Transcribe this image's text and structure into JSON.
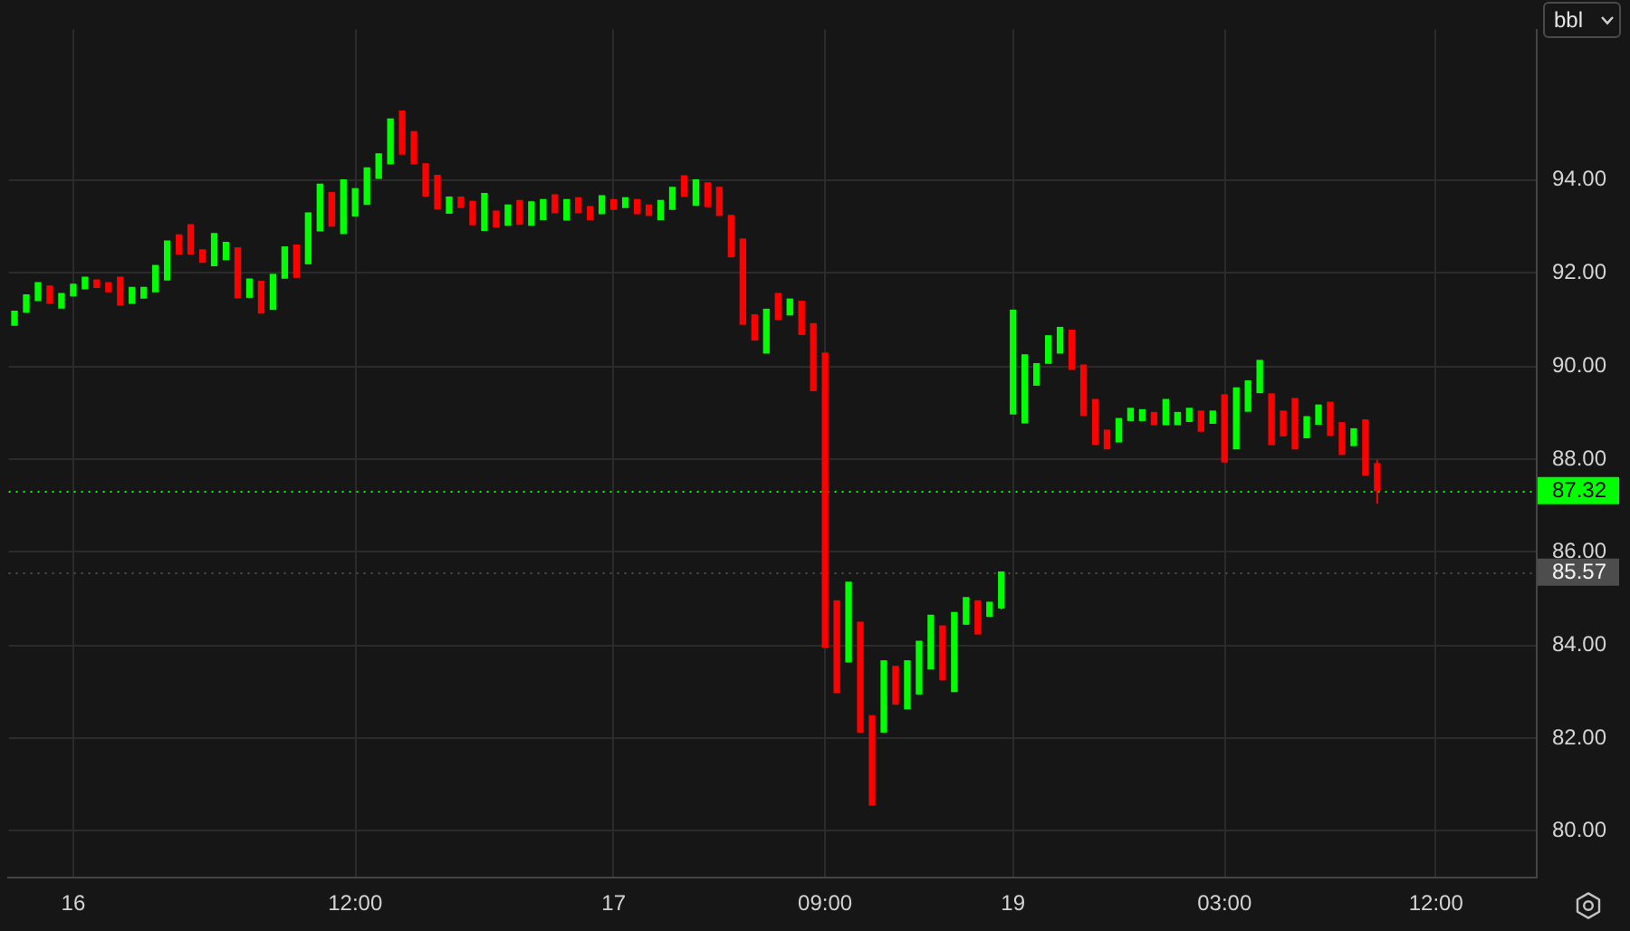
{
  "chart_data": {
    "type": "candlestick",
    "ylabel": "bbl",
    "categories": [
      null,
      null,
      null,
      null,
      null,
      "16",
      null,
      null,
      null,
      null,
      null,
      null,
      null,
      null,
      null,
      null,
      null,
      null,
      null,
      null,
      null,
      null,
      null,
      null,
      null,
      null,
      null,
      null,
      null,
      "12:00",
      null,
      null,
      null,
      null,
      null,
      null,
      null,
      null,
      null,
      null,
      null,
      null,
      null,
      null,
      null,
      null,
      null,
      null,
      null,
      null,
      null,
      "17",
      null,
      null,
      null,
      null,
      null,
      null,
      null,
      null,
      null,
      null,
      null,
      null,
      null,
      null,
      null,
      null,
      null,
      "09:00",
      null,
      null,
      null,
      null,
      null,
      null,
      null,
      null,
      null,
      null,
      null,
      null,
      null,
      null,
      null,
      "19",
      null,
      null,
      null,
      null,
      null,
      null,
      null,
      null,
      null,
      null,
      null,
      null,
      null,
      null,
      null,
      null,
      null,
      "03:00",
      null,
      null,
      null,
      null,
      null,
      null,
      null,
      null,
      null,
      null,
      null,
      null,
      null,
      null,
      null,
      null,
      null,
      "12:00",
      null,
      null,
      null,
      null,
      null,
      null,
      null,
      null
    ],
    "ohlc": [
      [
        90.88,
        91.18,
        90.88,
        91.18
      ],
      [
        91.16,
        91.53,
        91.16,
        91.53
      ],
      [
        91.41,
        91.79,
        91.41,
        91.79
      ],
      [
        91.72,
        91.72,
        91.35,
        91.35
      ],
      [
        91.25,
        91.56,
        91.25,
        91.56
      ],
      [
        91.51,
        91.76,
        91.51,
        91.76
      ],
      [
        91.66,
        91.91,
        91.66,
        91.91
      ],
      [
        91.85,
        91.85,
        91.69,
        91.69
      ],
      [
        91.79,
        91.79,
        91.6,
        91.6
      ],
      [
        91.91,
        91.91,
        91.31,
        91.31
      ],
      [
        91.35,
        91.69,
        91.35,
        91.69
      ],
      [
        91.46,
        91.69,
        91.46,
        91.69
      ],
      [
        91.6,
        92.16,
        91.6,
        92.16
      ],
      [
        91.85,
        92.69,
        91.85,
        92.69
      ],
      [
        92.82,
        92.82,
        92.41,
        92.41
      ],
      [
        93.04,
        93.04,
        92.41,
        92.41
      ],
      [
        92.5,
        92.5,
        92.23,
        92.23
      ],
      [
        92.16,
        92.85,
        92.16,
        92.85
      ],
      [
        92.29,
        92.66,
        92.29,
        92.66
      ],
      [
        92.54,
        92.54,
        91.47,
        91.47
      ],
      [
        91.48,
        91.87,
        91.48,
        91.87
      ],
      [
        91.82,
        91.82,
        91.14,
        91.14
      ],
      [
        91.22,
        91.97,
        91.22,
        91.97
      ],
      [
        91.89,
        92.56,
        91.89,
        92.56
      ],
      [
        92.6,
        92.6,
        91.91,
        91.91
      ],
      [
        92.2,
        93.29,
        92.2,
        93.29
      ],
      [
        92.91,
        93.91,
        92.91,
        93.91
      ],
      [
        93.73,
        93.73,
        93.01,
        93.01
      ],
      [
        92.85,
        94,
        92.85,
        94
      ],
      [
        93.23,
        93.81,
        93.23,
        93.81
      ],
      [
        93.48,
        94.26,
        93.48,
        94.26
      ],
      [
        94.04,
        94.56,
        94.04,
        94.56
      ],
      [
        94.35,
        95.31,
        94.35,
        95.31
      ],
      [
        95.48,
        95.48,
        94.56,
        94.56
      ],
      [
        95.04,
        95.04,
        94.35,
        94.35
      ],
      [
        94.35,
        94.35,
        93.66,
        93.66
      ],
      [
        94.1,
        94.1,
        93.38,
        93.38
      ],
      [
        93.29,
        93.63,
        93.29,
        93.63
      ],
      [
        93.63,
        93.63,
        93.41,
        93.41
      ],
      [
        93.54,
        93.54,
        93.04,
        93.04
      ],
      [
        92.92,
        93.71,
        92.92,
        93.71
      ],
      [
        93.33,
        93.33,
        92.99,
        92.99
      ],
      [
        93.03,
        93.46,
        93.03,
        93.46
      ],
      [
        93.56,
        93.56,
        93.05,
        93.05
      ],
      [
        93.03,
        93.53,
        93.03,
        93.53
      ],
      [
        93.15,
        93.58,
        93.15,
        93.58
      ],
      [
        93.68,
        93.68,
        93.3,
        93.3
      ],
      [
        93.14,
        93.58,
        93.14,
        93.58
      ],
      [
        93.62,
        93.62,
        93.3,
        93.3
      ],
      [
        93.43,
        93.43,
        93.15,
        93.15
      ],
      [
        93.28,
        93.66,
        93.28,
        93.66
      ],
      [
        93.58,
        93.58,
        93.37,
        93.37
      ],
      [
        93.41,
        93.62,
        93.41,
        93.62
      ],
      [
        93.58,
        93.58,
        93.28,
        93.28
      ],
      [
        93.46,
        93.46,
        93.24,
        93.24
      ],
      [
        93.15,
        93.56,
        93.15,
        93.56
      ],
      [
        93.37,
        93.84,
        93.37,
        93.84
      ],
      [
        94.09,
        94.09,
        93.66,
        93.66
      ],
      [
        93.46,
        94,
        93.46,
        94
      ],
      [
        93.94,
        93.94,
        93.43,
        93.43
      ],
      [
        93.84,
        93.84,
        93.24,
        93.24
      ],
      [
        93.24,
        93.24,
        92.35,
        92.35
      ],
      [
        92.73,
        92.73,
        90.9,
        90.9
      ],
      [
        91.1,
        91.1,
        90.56,
        90.56
      ],
      [
        90.28,
        91.22,
        90.28,
        91.22
      ],
      [
        91.56,
        91.56,
        91,
        91
      ],
      [
        91.1,
        91.44,
        91.1,
        91.44
      ],
      [
        91.39,
        91.39,
        90.68,
        90.68
      ],
      [
        90.91,
        90.91,
        89.47,
        89.47
      ],
      [
        90.28,
        90.28,
        83.95,
        83.95
      ],
      [
        84.95,
        84.95,
        82.98,
        82.98
      ],
      [
        83.64,
        85.35,
        83.64,
        85.35
      ],
      [
        84.49,
        84.49,
        82.13,
        82.13
      ],
      [
        82.48,
        82.48,
        80.56,
        80.56
      ],
      [
        82.13,
        83.66,
        82.13,
        83.66
      ],
      [
        83.54,
        83.54,
        82.73,
        82.73
      ],
      [
        82.63,
        83.66,
        82.63,
        83.66
      ],
      [
        82.95,
        84.08,
        82.95,
        84.08
      ],
      [
        83.49,
        84.64,
        83.49,
        84.64
      ],
      [
        84.41,
        84.41,
        83.26,
        83.26
      ],
      [
        83,
        84.7,
        83,
        84.7
      ],
      [
        84.45,
        85.02,
        84.45,
        85.02
      ],
      [
        84.95,
        84.95,
        84.24,
        84.24
      ],
      [
        84.62,
        84.92,
        84.62,
        84.92
      ],
      [
        84.8,
        85.58,
        84.77,
        85.57
      ],
      [
        88.97,
        91.2,
        88.97,
        91.2
      ],
      [
        88.78,
        90.24,
        88.78,
        90.24
      ],
      [
        89.59,
        90.05,
        89.59,
        90.05
      ],
      [
        90.06,
        90.65,
        90.06,
        90.65
      ],
      [
        90.28,
        90.83,
        90.28,
        90.83
      ],
      [
        90.77,
        90.77,
        89.93,
        89.93
      ],
      [
        90.02,
        90.02,
        88.94,
        88.94
      ],
      [
        89.28,
        89.28,
        88.32,
        88.32
      ],
      [
        88.62,
        88.62,
        88.22,
        88.22
      ],
      [
        88.37,
        88.87,
        88.37,
        88.87
      ],
      [
        88.83,
        89.09,
        88.83,
        89.09
      ],
      [
        88.83,
        89.06,
        88.83,
        89.06
      ],
      [
        89,
        89,
        88.74,
        88.74
      ],
      [
        88.74,
        89.28,
        88.74,
        89.28
      ],
      [
        88.74,
        89,
        88.74,
        89
      ],
      [
        88.81,
        89.09,
        88.81,
        89.09
      ],
      [
        89.03,
        89.03,
        88.6,
        88.6
      ],
      [
        88.77,
        89.03,
        88.77,
        89.03
      ],
      [
        89.38,
        89.38,
        87.94,
        87.94
      ],
      [
        88.22,
        89.53,
        88.22,
        89.53
      ],
      [
        89.03,
        89.68,
        89.03,
        89.68
      ],
      [
        89.43,
        90.12,
        89.43,
        90.12
      ],
      [
        89.4,
        89.4,
        88.31,
        88.31
      ],
      [
        89.03,
        89.03,
        88.5,
        88.5
      ],
      [
        89.3,
        89.3,
        88.22,
        88.22
      ],
      [
        88.46,
        88.91,
        88.46,
        88.91
      ],
      [
        88.75,
        89.16,
        88.75,
        89.16
      ],
      [
        89.22,
        89.22,
        88.51,
        88.51
      ],
      [
        88.78,
        88.78,
        88.1,
        88.1
      ],
      [
        88.29,
        88.65,
        88.29,
        88.65
      ],
      [
        88.84,
        88.84,
        87.66,
        87.66
      ],
      [
        87.9,
        87.98,
        87.04,
        87.32
      ],
      null,
      null,
      null,
      null,
      null,
      null,
      null,
      null,
      null,
      null,
      null,
      null,
      null
    ],
    "colors": [
      "#00ff00",
      "#00ff00",
      "#00ff00",
      "#ff0000",
      "#00ff00",
      "#00ff00",
      "#00ff00",
      "#ff0000",
      "#ff0000",
      "#ff0000",
      "#00ff00",
      "#00ff00",
      "#00ff00",
      "#00ff00",
      "#ff0000",
      "#ff0000",
      "#ff0000",
      "#00ff00",
      "#00ff00",
      "#ff0000",
      "#00ff00",
      "#ff0000",
      "#00ff00",
      "#00ff00",
      "#ff0000",
      "#00ff00",
      "#00ff00",
      "#ff0000",
      "#00ff00",
      "#00ff00",
      "#00ff00",
      "#00ff00",
      "#00ff00",
      "#ff0000",
      "#ff0000",
      "#ff0000",
      "#ff0000",
      "#00ff00",
      "#ff0000",
      "#ff0000",
      "#00ff00",
      "#ff0000",
      "#00ff00",
      "#ff0000",
      "#00ff00",
      "#00ff00",
      "#ff0000",
      "#00ff00",
      "#ff0000",
      "#ff0000",
      "#00ff00",
      "#ff0000",
      "#00ff00",
      "#ff0000",
      "#ff0000",
      "#00ff00",
      "#00ff00",
      "#ff0000",
      "#00ff00",
      "#ff0000",
      "#ff0000",
      "#ff0000",
      "#ff0000",
      "#ff0000",
      "#00ff00",
      "#ff0000",
      "#00ff00",
      "#ff0000",
      "#ff0000",
      "#ff0000",
      "#ff0000",
      "#00ff00",
      "#ff0000",
      "#ff0000",
      "#00ff00",
      "#ff0000",
      "#00ff00",
      "#00ff00",
      "#00ff00",
      "#ff0000",
      "#00ff00",
      "#00ff00",
      "#ff0000",
      "#00ff00",
      "#00ff00",
      "#00ff00",
      "#00ff00",
      "#00ff00",
      "#00ff00",
      "#00ff00",
      "#ff0000",
      "#ff0000",
      "#ff0000",
      "#ff0000",
      "#00ff00",
      "#00ff00",
      "#00ff00",
      "#ff0000",
      "#00ff00",
      "#00ff00",
      "#00ff00",
      "#ff0000",
      "#00ff00",
      "#ff0000",
      "#00ff00",
      "#00ff00",
      "#00ff00",
      "#ff0000",
      "#ff0000",
      "#ff0000",
      "#00ff00",
      "#00ff00",
      "#ff0000",
      "#ff0000",
      "#00ff00",
      "#ff0000",
      "#ff0000",
      null,
      null,
      null,
      null,
      null,
      null,
      null,
      null,
      null,
      null,
      null,
      null,
      null
    ],
    "ylim": [
      79.02,
      97.24
    ],
    "yticks": [
      {
        "value": 80,
        "label": "80.00"
      },
      {
        "value": 82,
        "label": "82.00"
      },
      {
        "value": 84,
        "label": "84.00"
      },
      {
        "value": 86,
        "label": "86.00"
      },
      {
        "value": 88,
        "label": "88.00"
      },
      {
        "value": 90,
        "label": "90.00"
      },
      {
        "value": 92,
        "label": "92.00"
      },
      {
        "value": 94,
        "label": "94.00"
      }
    ],
    "ref_lines": [
      {
        "axis": "y",
        "value": 87.32,
        "label": "87.32",
        "color": "#00ff00",
        "line_style": "dotted"
      },
      {
        "axis": "y",
        "value": 85.57,
        "label": "85.57",
        "color": "#4d4d4d",
        "line_style": "dotted"
      }
    ],
    "grid": true,
    "legend": false
  }
}
